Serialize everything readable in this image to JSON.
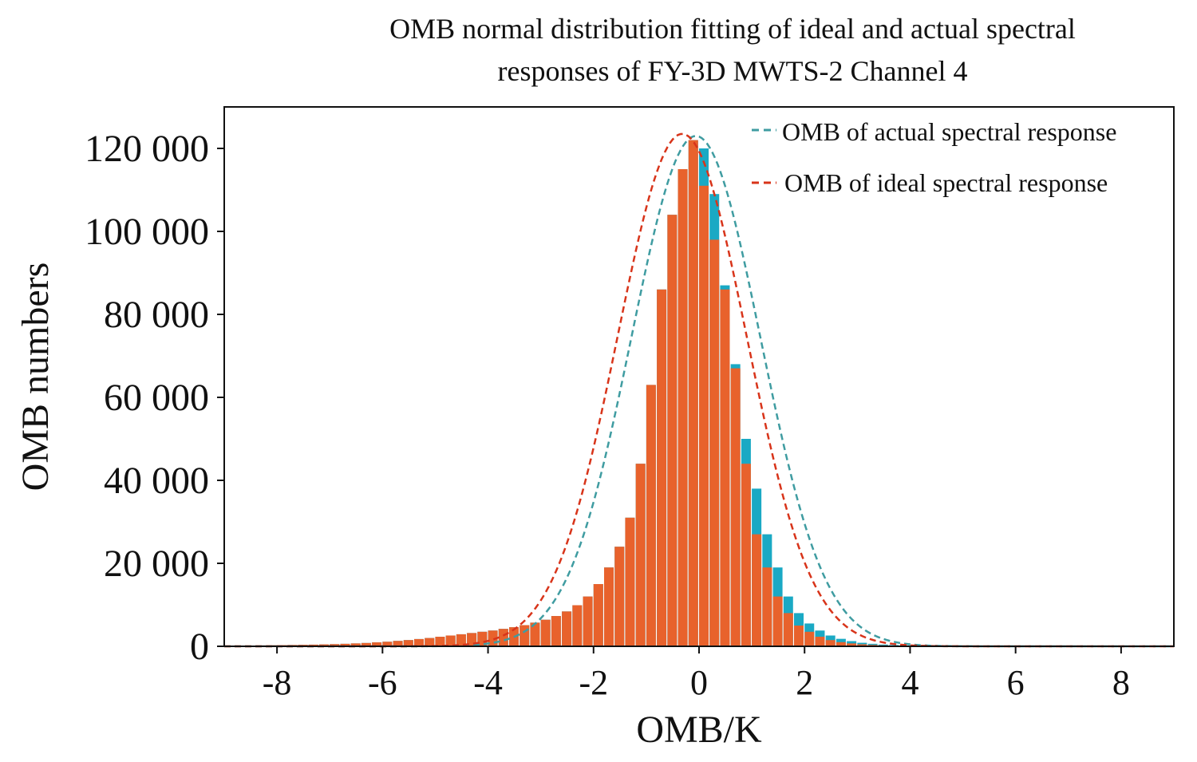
{
  "chart_data": {
    "type": "bar",
    "title_lines": [
      "OMB normal distribution fitting of ideal and actual spectral",
      "responses of FY-3D MWTS-2 Channel 4"
    ],
    "xlabel": "OMB/K",
    "ylabel": "OMB numbers",
    "xlim": [
      -9,
      9
    ],
    "ylim": [
      0,
      130000
    ],
    "xticks": [
      -8,
      -6,
      -4,
      -2,
      0,
      2,
      4,
      6,
      8
    ],
    "yticks": [
      0,
      20000,
      40000,
      60000,
      80000,
      100000,
      120000
    ],
    "ytick_labels": [
      "0",
      "20 000",
      "40 000",
      "60 000",
      "80 000",
      "100 000",
      "120 000"
    ],
    "grid": false,
    "legend_position": "top-right",
    "bin_width": 0.2,
    "colors": {
      "actual_bars": "#1aa9c4",
      "ideal_bars": "#e8622c",
      "actual_fit": "#3f9ca1",
      "ideal_fit": "#d8341a"
    },
    "series": [
      {
        "name": "OMB of actual spectral response",
        "kind": "histogram + normal fit",
        "bin_centers": [
          -8.9,
          -8.7,
          -8.5,
          -8.3,
          -8.1,
          -7.9,
          -7.7,
          -7.5,
          -7.3,
          -7.1,
          -6.9,
          -6.7,
          -6.5,
          -6.3,
          -6.1,
          -5.9,
          -5.7,
          -5.5,
          -5.3,
          -5.1,
          -4.9,
          -4.7,
          -4.5,
          -4.3,
          -4.1,
          -3.9,
          -3.7,
          -3.5,
          -3.3,
          -3.1,
          -2.9,
          -2.7,
          -2.5,
          -2.3,
          -2.1,
          -1.9,
          -1.7,
          -1.5,
          -1.3,
          -1.1,
          -0.9,
          -0.7,
          -0.5,
          -0.3,
          -0.1,
          0.1,
          0.3,
          0.5,
          0.7,
          0.9,
          1.1,
          1.3,
          1.5,
          1.7,
          1.9,
          2.1,
          2.3,
          2.5,
          2.7,
          2.9,
          3.1,
          3.3,
          3.5,
          3.7,
          3.9,
          4.1,
          4.3,
          4.5,
          4.7,
          4.9,
          5.1,
          5.3,
          5.5,
          5.7,
          5.9,
          6.1,
          6.3,
          6.5,
          6.7,
          6.9,
          7.1,
          7.3,
          7.5,
          7.7,
          7.9,
          8.1,
          8.3,
          8.5,
          8.7,
          8.9
        ],
        "counts": [
          150,
          170,
          190,
          220,
          250,
          280,
          320,
          360,
          400,
          460,
          520,
          600,
          700,
          800,
          950,
          1100,
          1300,
          1500,
          1750,
          2000,
          2300,
          2600,
          2900,
          3200,
          3500,
          3800,
          4200,
          4600,
          5100,
          5700,
          6400,
          7300,
          8400,
          9900,
          12000,
          15000,
          19000,
          24000,
          31000,
          44000,
          63000,
          86000,
          104000,
          115000,
          122000,
          120000,
          109000,
          87000,
          68000,
          50000,
          38000,
          27000,
          19000,
          12000,
          8000,
          5500,
          3800,
          2600,
          1800,
          1250,
          850,
          600,
          420,
          300,
          210,
          150,
          110,
          80,
          60,
          45,
          35,
          28,
          22,
          18,
          15,
          12,
          10,
          9,
          8,
          7,
          6,
          5,
          5,
          4,
          4,
          3,
          3,
          3,
          2,
          2
        ],
        "fit_mean": -0.06,
        "fit_sigma": 1.22,
        "fit_peak": 123000
      },
      {
        "name": "OMB of ideal spectral response",
        "kind": "histogram + normal fit",
        "bin_centers": [
          -8.9,
          -8.7,
          -8.5,
          -8.3,
          -8.1,
          -7.9,
          -7.7,
          -7.5,
          -7.3,
          -7.1,
          -6.9,
          -6.7,
          -6.5,
          -6.3,
          -6.1,
          -5.9,
          -5.7,
          -5.5,
          -5.3,
          -5.1,
          -4.9,
          -4.7,
          -4.5,
          -4.3,
          -4.1,
          -3.9,
          -3.7,
          -3.5,
          -3.3,
          -3.1,
          -2.9,
          -2.7,
          -2.5,
          -2.3,
          -2.1,
          -1.9,
          -1.7,
          -1.5,
          -1.3,
          -1.1,
          -0.9,
          -0.7,
          -0.5,
          -0.3,
          -0.1,
          0.1,
          0.3,
          0.5,
          0.7,
          0.9,
          1.1,
          1.3,
          1.5,
          1.7,
          1.9,
          2.1,
          2.3,
          2.5,
          2.7,
          2.9,
          3.1,
          3.3,
          3.5,
          3.7,
          3.9,
          4.1,
          4.3,
          4.5,
          4.7,
          4.9,
          5.1,
          5.3,
          5.5,
          5.7,
          5.9,
          6.1,
          6.3,
          6.5,
          6.7,
          6.9,
          7.1,
          7.3,
          7.5,
          7.7,
          7.9,
          8.1,
          8.3,
          8.5,
          8.7,
          8.9
        ],
        "counts": [
          150,
          170,
          190,
          220,
          250,
          280,
          320,
          360,
          400,
          460,
          520,
          600,
          700,
          800,
          950,
          1100,
          1300,
          1500,
          1750,
          2000,
          2300,
          2600,
          2900,
          3200,
          3500,
          3800,
          4200,
          4600,
          5100,
          5700,
          6400,
          7300,
          8400,
          9900,
          12000,
          15000,
          19000,
          24000,
          31000,
          44000,
          63000,
          86000,
          104000,
          115000,
          122000,
          111000,
          98000,
          86000,
          67000,
          44000,
          27000,
          19000,
          12000,
          8000,
          5000,
          3500,
          2300,
          1500,
          1000,
          700,
          480,
          330,
          230,
          160,
          110,
          80,
          60,
          45,
          35,
          28,
          22,
          18,
          15,
          12,
          10,
          9,
          8,
          7,
          6,
          5,
          5,
          4,
          4,
          3,
          3,
          3,
          3,
          2,
          2,
          2
        ],
        "fit_mean": -0.32,
        "fit_sigma": 1.22,
        "fit_peak": 123500
      }
    ]
  }
}
